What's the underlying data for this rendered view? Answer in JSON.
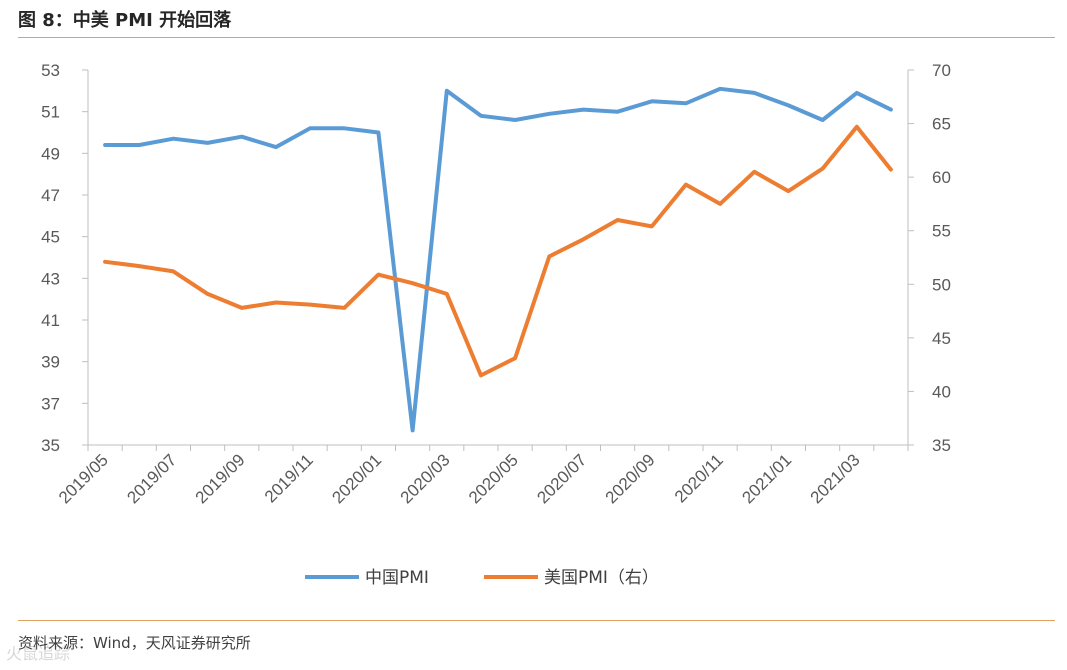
{
  "header": {
    "title": "图 8：中美 PMI 开始回落"
  },
  "footer": {
    "source": "资料来源：Wind，天风证券研究所",
    "watermark": "火鼠追踪"
  },
  "chart_data": {
    "type": "line",
    "title": "图 8：中美 PMI 开始回落",
    "x": [
      "2019/05",
      "2019/06",
      "2019/07",
      "2019/08",
      "2019/09",
      "2019/10",
      "2019/11",
      "2019/12",
      "2020/01",
      "2020/02",
      "2020/03",
      "2020/04",
      "2020/05",
      "2020/06",
      "2020/07",
      "2020/08",
      "2020/09",
      "2020/10",
      "2020/11",
      "2020/12",
      "2021/01",
      "2021/02",
      "2021/03",
      "2021/04"
    ],
    "x_tick_labels": [
      "2019/05",
      "2019/07",
      "2019/09",
      "2019/11",
      "2020/01",
      "2020/03",
      "2020/05",
      "2020/07",
      "2020/09",
      "2020/11",
      "2021/01",
      "2021/03"
    ],
    "y_left": {
      "range": [
        35,
        53
      ],
      "ticks": [
        35,
        37,
        39,
        41,
        43,
        45,
        47,
        49,
        51,
        53
      ]
    },
    "y_right": {
      "range": [
        35,
        70
      ],
      "ticks": [
        35,
        40,
        45,
        50,
        55,
        60,
        65,
        70
      ]
    },
    "series": [
      {
        "name": "中国PMI",
        "axis": "left",
        "color": "#5B9BD5",
        "values": [
          49.4,
          49.4,
          49.7,
          49.5,
          49.8,
          49.3,
          50.2,
          50.2,
          50.0,
          35.7,
          52.0,
          50.8,
          50.6,
          50.9,
          51.1,
          51.0,
          51.5,
          51.4,
          52.1,
          51.9,
          51.3,
          50.6,
          51.9,
          51.1
        ]
      },
      {
        "name": "美国PMI（右）",
        "axis": "right",
        "color": "#ED7D31",
        "values": [
          52.1,
          51.7,
          51.2,
          49.1,
          47.8,
          48.3,
          48.1,
          47.8,
          50.9,
          50.1,
          49.1,
          41.5,
          43.1,
          52.6,
          54.2,
          56.0,
          55.4,
          59.3,
          57.5,
          60.5,
          58.7,
          60.8,
          64.7,
          60.7
        ]
      }
    ],
    "legend": "bottom"
  }
}
